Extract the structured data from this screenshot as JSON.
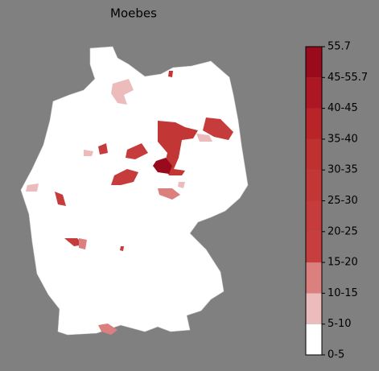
{
  "title": "Moebes",
  "colorbar": {
    "labels": [
      "0-5",
      "5-10",
      "10-15",
      "15-20",
      "20-25",
      "25-30",
      "30-35",
      "35-40",
      "40-45",
      "45-55.7",
      "55.7"
    ],
    "colors": [
      "#ffffff",
      "#ecbcbc",
      "#dc7f7f",
      "#c83e3e",
      "#c63b3b",
      "#c33636",
      "#bf3030",
      "#b82427",
      "#ad1724",
      "#990a1d"
    ]
  }
}
